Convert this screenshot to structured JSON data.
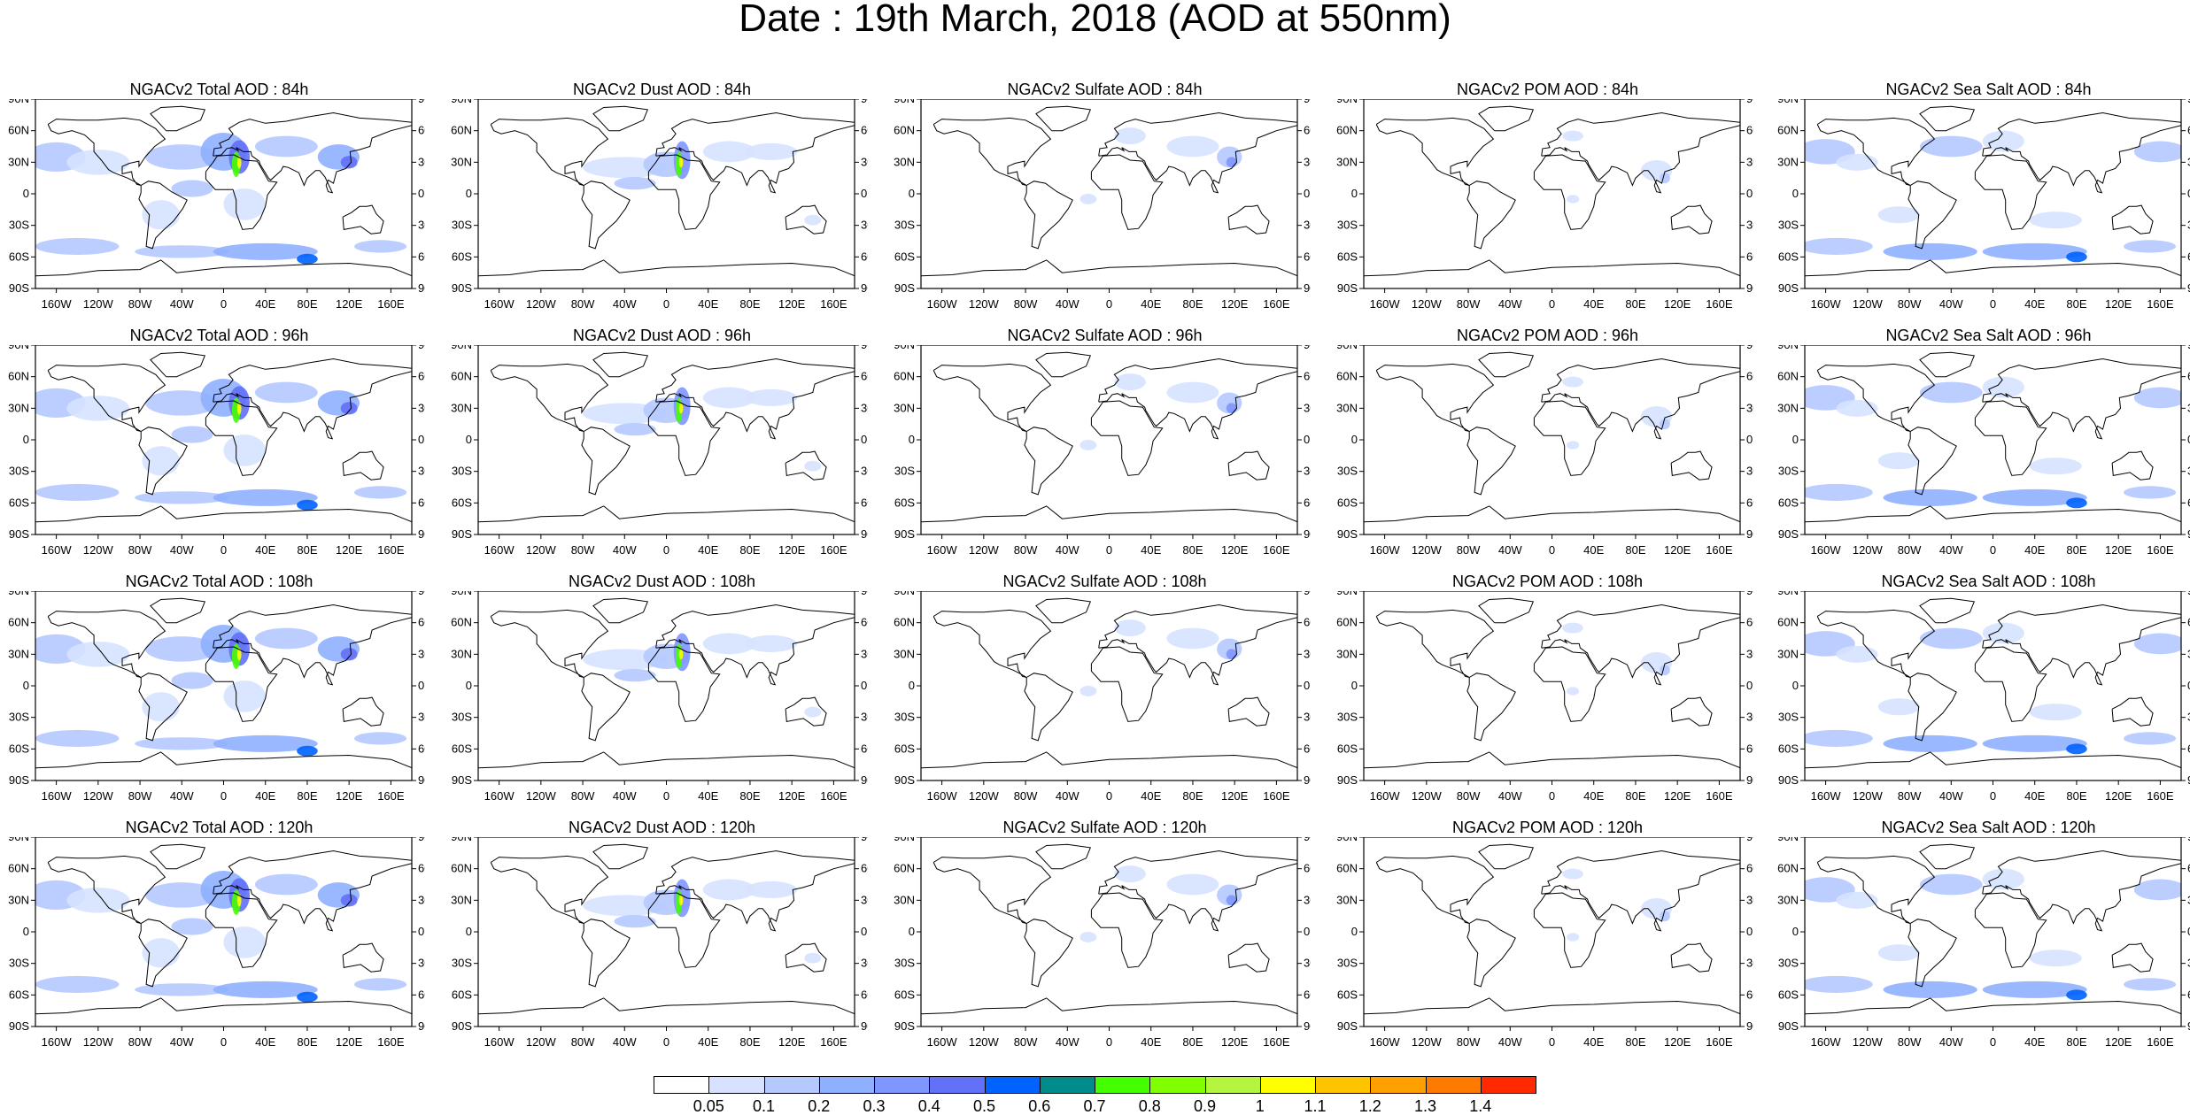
{
  "title": "Date : 19th March, 2018 (AOD at 550nm)",
  "lat_labels": [
    "90N",
    "60N",
    "30N",
    "0",
    "30S",
    "60S",
    "90S"
  ],
  "lon_labels": [
    "160W",
    "120W",
    "80W",
    "40W",
    "0",
    "40E",
    "80E",
    "120E",
    "160E"
  ],
  "rows": [
    {
      "lead": "84h",
      "panels": [
        {
          "title": "NGACv2 Total AOD : 84h",
          "species": "total"
        },
        {
          "title": "NGACv2 Dust AOD : 84h",
          "species": "dust"
        },
        {
          "title": "NGACv2 Sulfate AOD : 84h",
          "species": "sulfate"
        },
        {
          "title": "NGACv2 POM AOD : 84h",
          "species": "pom"
        },
        {
          "title": "NGACv2 Sea Salt AOD : 84h",
          "species": "seasalt"
        }
      ]
    },
    {
      "lead": "96h",
      "panels": [
        {
          "title": "NGACv2 Total AOD : 96h",
          "species": "total"
        },
        {
          "title": "NGACv2 Dust AOD : 96h",
          "species": "dust"
        },
        {
          "title": "NGACv2 Sulfate AOD : 96h",
          "species": "sulfate"
        },
        {
          "title": "NGACv2 POM AOD : 96h",
          "species": "pom"
        },
        {
          "title": "NGACv2 Sea Salt AOD : 96h",
          "species": "seasalt"
        }
      ]
    },
    {
      "lead": "108h",
      "panels": [
        {
          "title": "NGACv2 Total AOD : 108h",
          "species": "total"
        },
        {
          "title": "NGACv2 Dust AOD : 108h",
          "species": "dust"
        },
        {
          "title": "NGACv2 Sulfate AOD : 108h",
          "species": "sulfate"
        },
        {
          "title": "NGACv2 POM AOD : 108h",
          "species": "pom"
        },
        {
          "title": "NGACv2 Sea Salt AOD : 108h",
          "species": "seasalt"
        }
      ]
    },
    {
      "lead": "120h",
      "panels": [
        {
          "title": "NGACv2 Total AOD : 120h",
          "species": "total"
        },
        {
          "title": "NGACv2 Dust AOD : 120h",
          "species": "dust"
        },
        {
          "title": "NGACv2 Sulfate AOD : 120h",
          "species": "sulfate"
        },
        {
          "title": "NGACv2 POM AOD : 120h",
          "species": "pom"
        },
        {
          "title": "NGACv2 Sea Salt  AOD : 120h",
          "species": "seasalt"
        }
      ]
    }
  ],
  "colorbar": {
    "labels": [
      "0.05",
      "0.1",
      "0.2",
      "0.3",
      "0.4",
      "0.5",
      "0.6",
      "0.7",
      "0.8",
      "0.9",
      "1",
      "1.1",
      "1.2",
      "1.3",
      "1.4"
    ],
    "colors": [
      "#ffffff",
      "#d6e2ff",
      "#b5c9ff",
      "#8fb0ff",
      "#7f96ff",
      "#6370f8",
      "#0062ff",
      "#018c8c",
      "#44ff00",
      "#7fff00",
      "#b6f53f",
      "#ffff00",
      "#ffc400",
      "#ffa000",
      "#ff7a00",
      "#ff2a00"
    ]
  }
}
